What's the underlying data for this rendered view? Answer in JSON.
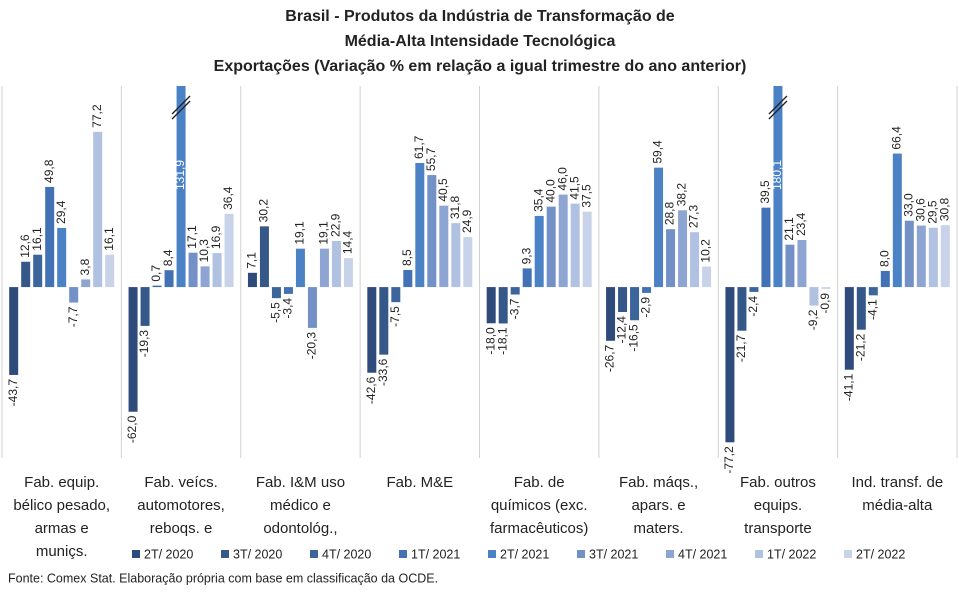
{
  "chart_data": {
    "type": "bar",
    "title": [
      "Brasil - Produtos da Indústria de Transformação de",
      "Média-Alta Intensidade Tecnológica",
      "Exportações (Variação % em relação a igual trimestre do ano anterior)"
    ],
    "categories": [
      [
        "Fab. equip.",
        "bélico pesado,",
        "armas e",
        "muniçs."
      ],
      [
        "Fab. veícs.",
        "automotores,",
        "reboqs. e"
      ],
      [
        "Fab. I&M uso",
        "médico e",
        "odontológ.,"
      ],
      [
        "Fab. M&E"
      ],
      [
        "Fab. de",
        "químicos (exc.",
        "farmacêuticos)"
      ],
      [
        "Fab. máqs.,",
        "apars. e",
        "maters."
      ],
      [
        "Fab. outros",
        "equips.",
        "transporte"
      ],
      [
        "Ind. transf. de",
        "média-alta"
      ]
    ],
    "series": [
      {
        "name": "2T/ 2020",
        "color": "#2f4b7c",
        "values": [
          -43.7,
          -62.0,
          7.1,
          -42.6,
          -18.0,
          -26.7,
          -77.2,
          -41.1
        ],
        "value_labels": [
          "-43,7",
          "-62,0",
          "7,1",
          "-42,6",
          "-18,0",
          "-26,7",
          "-77,2",
          "-41,1"
        ]
      },
      {
        "name": "3T/ 2020",
        "color": "#355889",
        "values": [
          12.6,
          -19.3,
          30.2,
          -33.6,
          -18.1,
          -12.4,
          -21.7,
          -21.2
        ],
        "value_labels": [
          "12,6",
          "-19,3",
          "30,2",
          "-33,6",
          "-18,1",
          "-12,4",
          "-21,7",
          "-21,2"
        ]
      },
      {
        "name": "4T/ 2020",
        "color": "#3c659b",
        "values": [
          16.1,
          0.7,
          -5.5,
          -7.5,
          -3.7,
          -16.5,
          -2.4,
          -4.1
        ],
        "value_labels": [
          "16,1",
          "0,7",
          "-5,5",
          "-7,5",
          "-3,7",
          "-16,5",
          "-2,4",
          "-4,1"
        ]
      },
      {
        "name": "1T/ 2021",
        "color": "#4272b5",
        "values": [
          49.8,
          8.4,
          -3.4,
          8.5,
          9.3,
          -2.9,
          39.5,
          8.0
        ],
        "value_labels": [
          "49,8",
          "8,4",
          "-3,4",
          "8,5",
          "9,3",
          "-2,9",
          "39,5",
          "8,0"
        ]
      },
      {
        "name": "2T/ 2021",
        "color": "#4b82c6",
        "values": [
          29.4,
          131.9,
          19.1,
          61.7,
          35.4,
          59.4,
          180.1,
          66.4
        ],
        "value_labels": [
          "29,4",
          "131,9",
          "19,1",
          "61,7",
          "35,4",
          "59,4",
          "180,1",
          "66,4"
        ]
      },
      {
        "name": "3T/ 2021",
        "color": "#7390c7",
        "values": [
          -7.7,
          17.1,
          -20.3,
          55.7,
          40.0,
          28.8,
          21.1,
          33.0
        ],
        "value_labels": [
          "-7,7",
          "17,1",
          "-20,3",
          "55,7",
          "40,0",
          "28,8",
          "21,1",
          "33,0"
        ]
      },
      {
        "name": "4T/ 2021",
        "color": "#8ea5d3",
        "values": [
          3.8,
          10.3,
          19.1,
          40.5,
          46.0,
          38.2,
          23.4,
          30.6
        ],
        "value_labels": [
          "3,8",
          "10,3",
          "19,1",
          "40,5",
          "46,0",
          "38,2",
          "23,4",
          "30,6"
        ]
      },
      {
        "name": "1T/ 2022",
        "color": "#b1c1e2",
        "values": [
          77.2,
          16.9,
          22.9,
          31.8,
          41.5,
          27.3,
          -9.2,
          29.5
        ],
        "value_labels": [
          "77,2",
          "16,9",
          "22,9",
          "31,8",
          "41,5",
          "27,3",
          "-9,2",
          "29,5"
        ]
      },
      {
        "name": "2T/ 2022",
        "color": "#c8d3ea",
        "values": [
          16.1,
          36.4,
          14.4,
          24.9,
          37.5,
          10.2,
          -0.9,
          30.8
        ],
        "value_labels": [
          "16,1",
          "36,4",
          "14,4",
          "24,9",
          "37,5",
          "10,2",
          "-0,9",
          "30,8"
        ]
      }
    ],
    "ylim": [
      -85,
      100
    ],
    "source": "Fonte: Comex Stat. Elaboração própria com base em classificação da OCDE."
  }
}
